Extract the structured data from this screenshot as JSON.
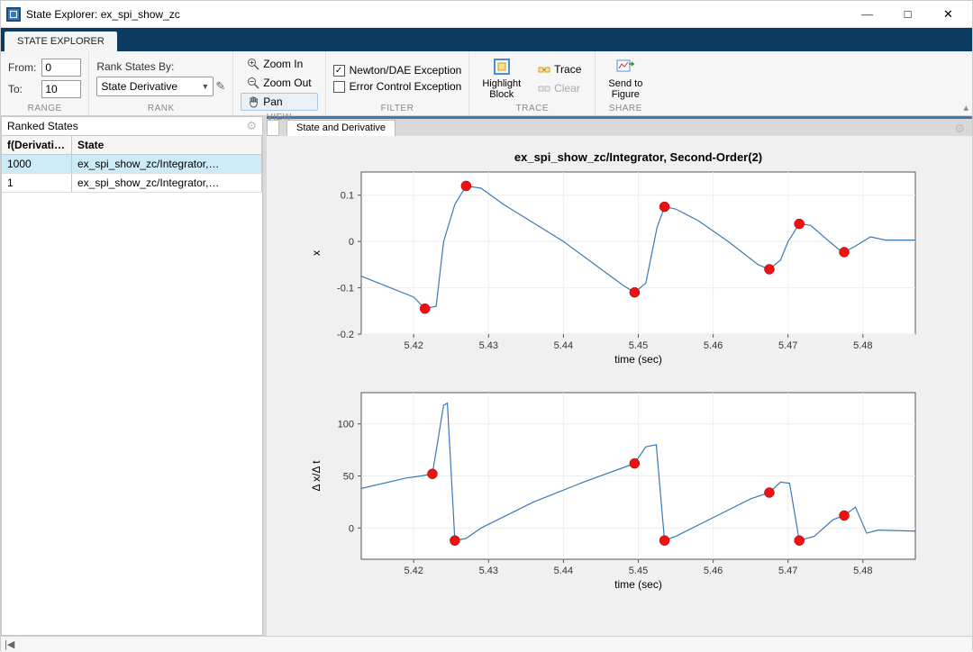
{
  "window": {
    "title": "State Explorer: ex_spi_show_zc"
  },
  "tabs": {
    "main": "STATE EXPLORER"
  },
  "toolstrip": {
    "range": {
      "from_label": "From:",
      "from_value": "0",
      "to_label": "To:",
      "to_value": "10",
      "group_label": "RANGE"
    },
    "rank": {
      "label": "Rank States By:",
      "combo_value": "State Derivative",
      "group_label": "RANK"
    },
    "view": {
      "zoom_in": "Zoom In",
      "zoom_out": "Zoom Out",
      "pan": "Pan",
      "group_label": "VIEW"
    },
    "filter": {
      "newton": "Newton/DAE Exception",
      "newton_checked": true,
      "error_ctrl": "Error Control Exception",
      "error_ctrl_checked": false,
      "group_label": "FILTER"
    },
    "trace": {
      "highlight": "Highlight\nBlock",
      "trace": "Trace",
      "clear": "Clear",
      "group_label": "TRACE"
    },
    "share": {
      "send": "Send to\nFigure",
      "group_label": "SHARE"
    }
  },
  "side": {
    "panel_title": "Ranked States",
    "columns": [
      "f(Derivative)",
      "State"
    ],
    "rows": [
      {
        "f": "1000",
        "state": "ex_spi_show_zc/Integrator,…",
        "selected": true
      },
      {
        "f": "1",
        "state": "ex_spi_show_zc/Integrator,…",
        "selected": false
      }
    ]
  },
  "content_tabs": {
    "state_deriv": "State and Derivative"
  },
  "chart_common": {
    "title": "ex_spi_show_zc/Integrator,  Second-Order(2)",
    "xlabel": "time (sec)",
    "xlim": [
      5.413,
      5.487
    ],
    "xticks": [
      5.42,
      5.43,
      5.44,
      5.45,
      5.46,
      5.47,
      5.48
    ],
    "line_color": "#3a79b7",
    "marker_color": "#ee1111",
    "marker_radius": 5.5,
    "frame_stroke": "#555555",
    "grid_color": "#eeeeee",
    "background": "#f0f0f0",
    "plot_bg": "#ffffff",
    "font_family": "Segoe UI",
    "tick_fontsize": 11,
    "label_fontsize": 12,
    "title_fontsize": 13
  },
  "chart_top": {
    "ylabel": "x",
    "ylim": [
      -0.2,
      0.15
    ],
    "yticks": [
      -0.2,
      -0.1,
      0,
      0.1
    ],
    "polyline": [
      [
        5.413,
        -0.075
      ],
      [
        5.42,
        -0.12
      ],
      [
        5.4215,
        -0.145
      ],
      [
        5.423,
        -0.14
      ],
      [
        5.424,
        0.0
      ],
      [
        5.4255,
        0.08
      ],
      [
        5.427,
        0.12
      ],
      [
        5.429,
        0.115
      ],
      [
        5.432,
        0.08
      ],
      [
        5.44,
        0.0
      ],
      [
        5.448,
        -0.095
      ],
      [
        5.4495,
        -0.11
      ],
      [
        5.451,
        -0.09
      ],
      [
        5.4525,
        0.03
      ],
      [
        5.4535,
        0.075
      ],
      [
        5.455,
        0.07
      ],
      [
        5.458,
        0.045
      ],
      [
        5.462,
        0.0
      ],
      [
        5.466,
        -0.05
      ],
      [
        5.4675,
        -0.06
      ],
      [
        5.469,
        -0.04
      ],
      [
        5.47,
        0.0
      ],
      [
        5.4715,
        0.038
      ],
      [
        5.473,
        0.035
      ],
      [
        5.4755,
        0.0
      ],
      [
        5.477,
        -0.02
      ],
      [
        5.4775,
        -0.023
      ],
      [
        5.479,
        -0.01
      ],
      [
        5.481,
        0.01
      ],
      [
        5.483,
        0.003
      ],
      [
        5.487,
        0.003
      ]
    ],
    "markers": [
      [
        5.4215,
        -0.145
      ],
      [
        5.427,
        0.12
      ],
      [
        5.4495,
        -0.11
      ],
      [
        5.4535,
        0.075
      ],
      [
        5.4675,
        -0.06
      ],
      [
        5.4715,
        0.038
      ],
      [
        5.4775,
        -0.023
      ]
    ]
  },
  "chart_bottom": {
    "ylabel": "Δ x/Δ t",
    "ylim": [
      -30,
      130
    ],
    "yticks": [
      0,
      50,
      100
    ],
    "polyline": [
      [
        5.413,
        38
      ],
      [
        5.419,
        48
      ],
      [
        5.421,
        50
      ],
      [
        5.4225,
        52
      ],
      [
        5.424,
        118
      ],
      [
        5.4245,
        120
      ],
      [
        5.4255,
        -12
      ],
      [
        5.427,
        -10
      ],
      [
        5.429,
        0
      ],
      [
        5.436,
        25
      ],
      [
        5.443,
        45
      ],
      [
        5.448,
        58
      ],
      [
        5.4495,
        62
      ],
      [
        5.451,
        78
      ],
      [
        5.4524,
        80
      ],
      [
        5.4535,
        -12
      ],
      [
        5.455,
        -8
      ],
      [
        5.46,
        10
      ],
      [
        5.465,
        28
      ],
      [
        5.4675,
        34
      ],
      [
        5.469,
        44
      ],
      [
        5.4702,
        43
      ],
      [
        5.4715,
        -12
      ],
      [
        5.4735,
        -8
      ],
      [
        5.476,
        8
      ],
      [
        5.4775,
        12
      ],
      [
        5.479,
        20
      ],
      [
        5.4805,
        -5
      ],
      [
        5.482,
        -2
      ],
      [
        5.487,
        -3
      ]
    ],
    "markers": [
      [
        5.4225,
        52
      ],
      [
        5.4255,
        -12
      ],
      [
        5.4495,
        62
      ],
      [
        5.4535,
        -12
      ],
      [
        5.4675,
        34
      ],
      [
        5.4715,
        -12
      ],
      [
        5.4775,
        12
      ]
    ]
  },
  "statusbar": {
    "left_sym": "|◀"
  }
}
